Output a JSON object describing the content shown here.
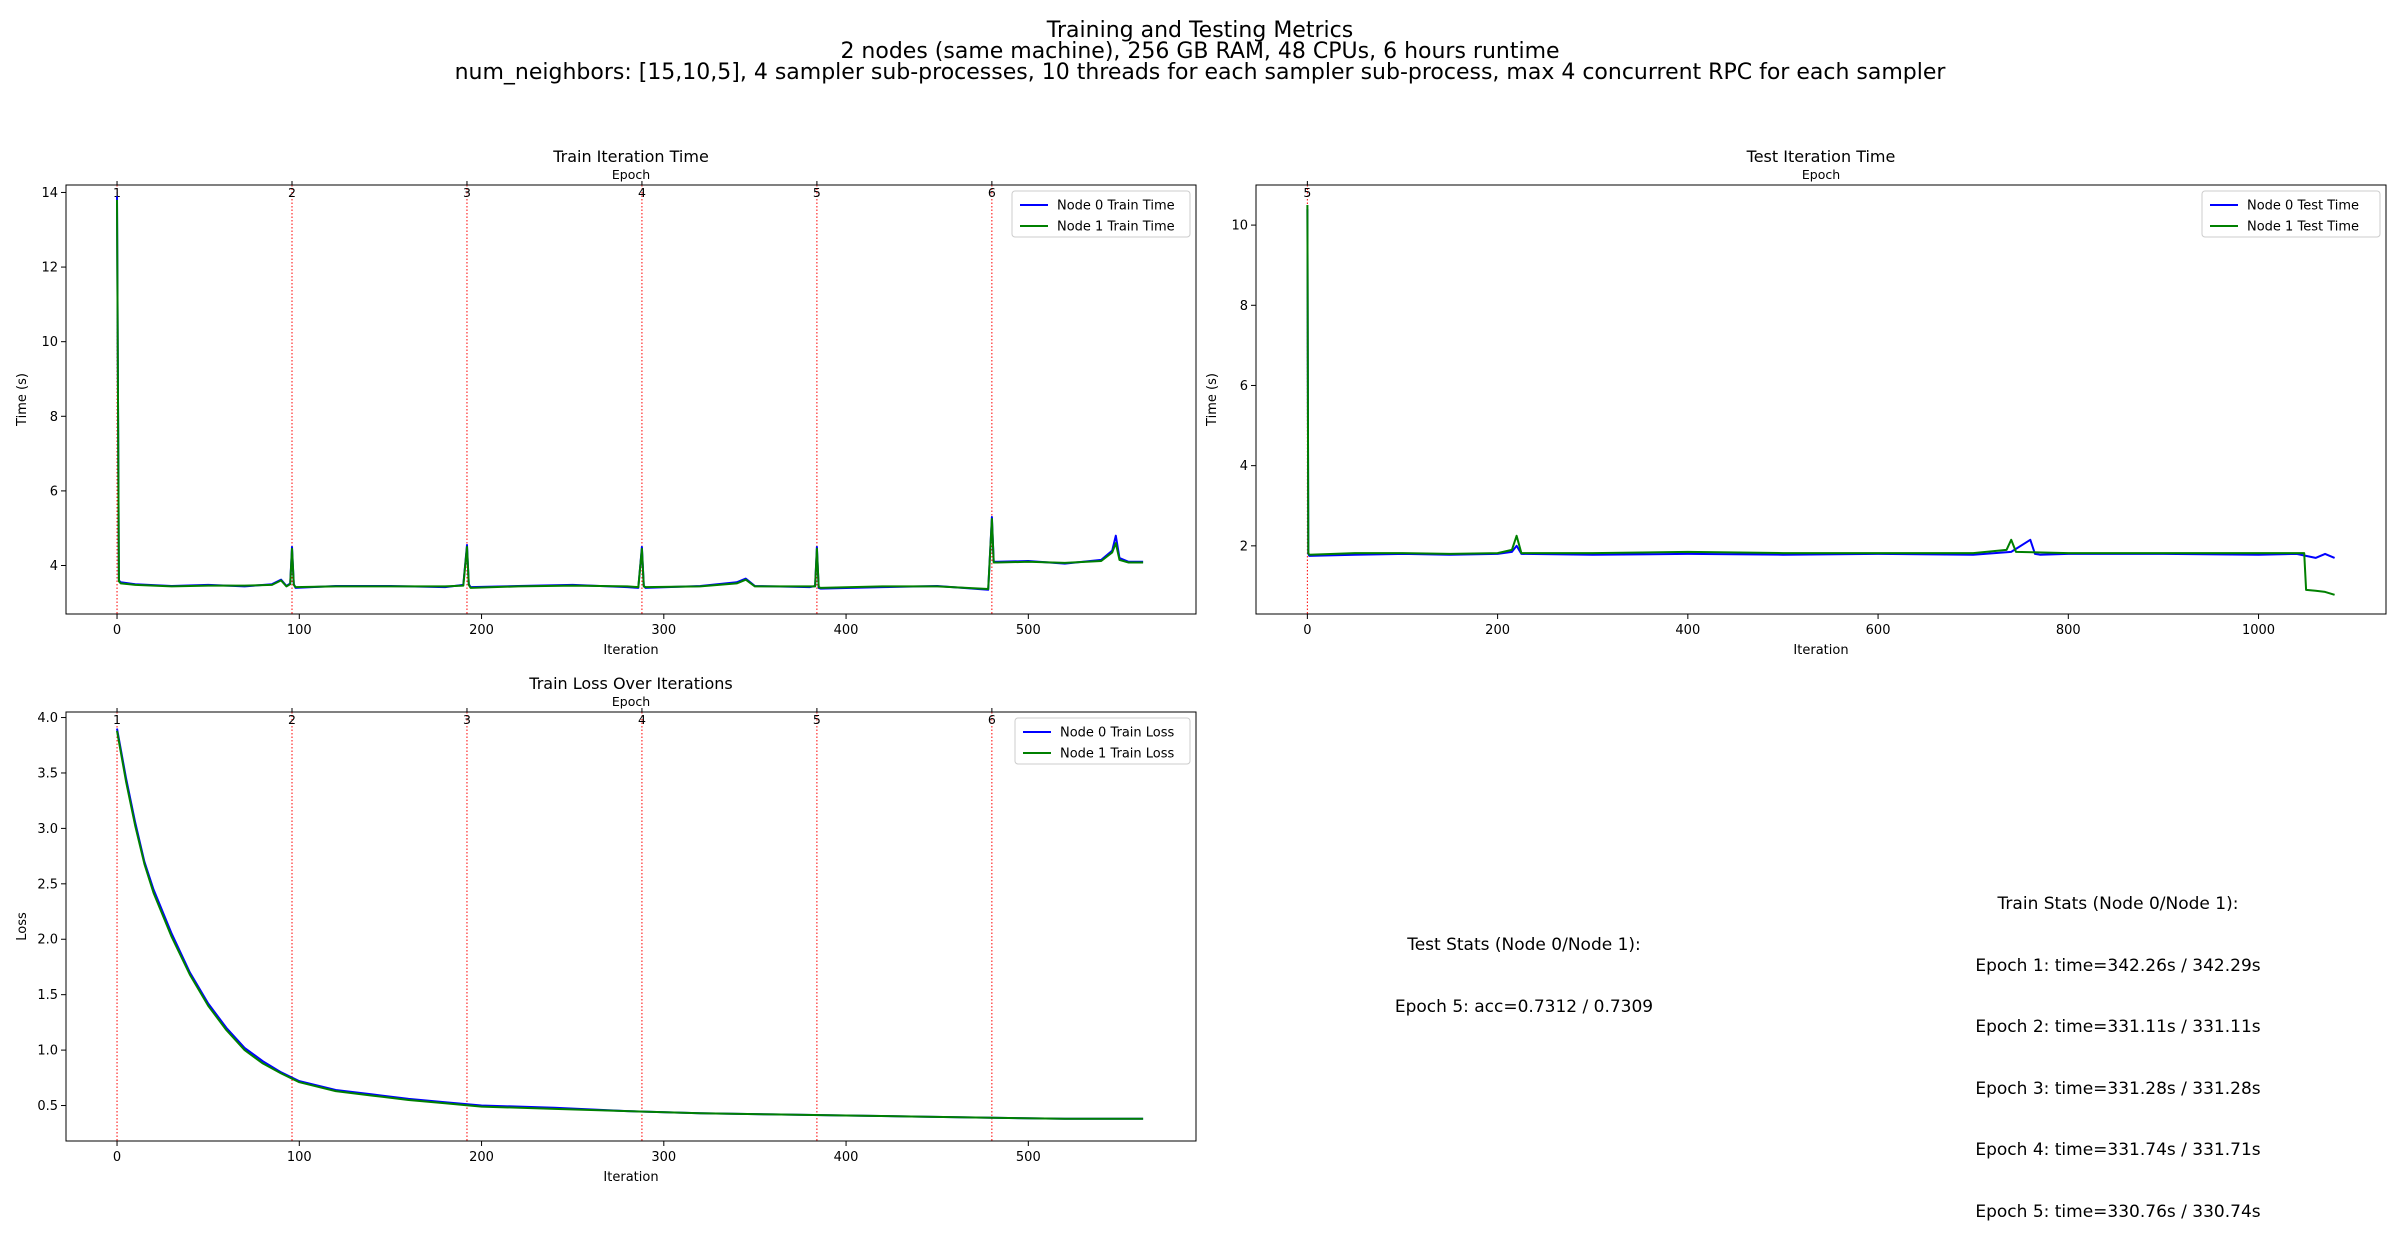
{
  "suptitle": {
    "line1": "Training and Testing Metrics",
    "line2": "2 nodes (same machine), 256 GB RAM, 48 CPUs, 6 hours runtime",
    "line3": "num_neighbors: [15,10,5], 4 sampler sub-processes, 10 threads for each sampler sub-process, max 4 concurrent RPC for each sampler"
  },
  "chart_data": [
    {
      "type": "line",
      "title": "Train Iteration Time",
      "top_axis_label": "Epoch",
      "xlabel": "Iteration",
      "ylabel": "Time (s)",
      "xlim": [
        -28,
        592
      ],
      "ylim": [
        2.7,
        14.2
      ],
      "xticks": [
        0,
        100,
        200,
        300,
        400,
        500
      ],
      "yticks": [
        4,
        6,
        8,
        10,
        12,
        14
      ],
      "epoch_markers": [
        {
          "label": "1",
          "x": 0
        },
        {
          "label": "2",
          "x": 96
        },
        {
          "label": "3",
          "x": 192
        },
        {
          "label": "4",
          "x": 288
        },
        {
          "label": "5",
          "x": 384
        },
        {
          "label": "6",
          "x": 480
        }
      ],
      "legend_position": "top-right",
      "series": [
        {
          "name": "Node 0 Train Time",
          "color": "#0000ff",
          "x": [
            0,
            1,
            2,
            10,
            30,
            50,
            70,
            85,
            90,
            93,
            95,
            96,
            97,
            98,
            120,
            150,
            180,
            190,
            192,
            193,
            194,
            220,
            250,
            280,
            286,
            288,
            289,
            290,
            320,
            340,
            345,
            350,
            380,
            383,
            384,
            385,
            386,
            420,
            450,
            478,
            480,
            481,
            483,
            500,
            520,
            540,
            546,
            548,
            550,
            555,
            563
          ],
          "y": [
            13.9,
            3.6,
            3.55,
            3.5,
            3.45,
            3.48,
            3.44,
            3.5,
            3.62,
            3.45,
            3.52,
            4.5,
            3.5,
            3.4,
            3.45,
            3.45,
            3.42,
            3.48,
            4.55,
            3.5,
            3.42,
            3.45,
            3.48,
            3.42,
            3.4,
            4.5,
            3.45,
            3.4,
            3.45,
            3.55,
            3.65,
            3.45,
            3.42,
            3.45,
            4.5,
            3.4,
            3.38,
            3.42,
            3.45,
            3.35,
            5.3,
            4.1,
            4.1,
            4.12,
            4.05,
            4.15,
            4.4,
            4.8,
            4.2,
            4.1,
            4.1
          ]
        },
        {
          "name": "Node 1 Train Time",
          "color": "#008000",
          "x": [
            0,
            1,
            2,
            10,
            30,
            50,
            70,
            85,
            90,
            93,
            95,
            96,
            97,
            98,
            120,
            150,
            180,
            190,
            192,
            193,
            194,
            220,
            250,
            280,
            286,
            288,
            289,
            290,
            320,
            340,
            345,
            350,
            380,
            383,
            384,
            385,
            386,
            420,
            450,
            478,
            480,
            481,
            483,
            500,
            520,
            540,
            546,
            548,
            550,
            555,
            563
          ],
          "y": [
            13.8,
            3.58,
            3.52,
            3.48,
            3.44,
            3.46,
            3.46,
            3.48,
            3.6,
            3.44,
            3.5,
            4.45,
            3.48,
            3.42,
            3.44,
            3.44,
            3.44,
            3.46,
            4.5,
            3.48,
            3.4,
            3.44,
            3.46,
            3.44,
            3.42,
            4.45,
            3.44,
            3.42,
            3.44,
            3.52,
            3.62,
            3.44,
            3.44,
            3.44,
            4.45,
            3.42,
            3.4,
            3.44,
            3.44,
            3.37,
            5.25,
            4.08,
            4.08,
            4.1,
            4.07,
            4.12,
            4.35,
            4.6,
            4.15,
            4.08,
            4.08
          ]
        }
      ]
    },
    {
      "type": "line",
      "title": "Test Iteration Time",
      "top_axis_label": "Epoch",
      "xlabel": "Iteration",
      "ylabel": "Time (s)",
      "xlim": [
        -54,
        1134
      ],
      "ylim": [
        0.3,
        11.0
      ],
      "xticks": [
        0,
        200,
        400,
        600,
        800,
        1000
      ],
      "yticks": [
        2,
        4,
        6,
        8,
        10
      ],
      "epoch_markers": [
        {
          "label": "5",
          "x": 0
        }
      ],
      "legend_position": "top-right",
      "series": [
        {
          "name": "Node 0 Test Time",
          "color": "#0000ff",
          "x": [
            0,
            1,
            2,
            50,
            100,
            150,
            200,
            215,
            220,
            225,
            300,
            400,
            500,
            600,
            700,
            740,
            760,
            765,
            770,
            800,
            900,
            1000,
            1040,
            1050,
            1060,
            1070,
            1080
          ],
          "y": [
            10.4,
            1.8,
            1.75,
            1.78,
            1.8,
            1.78,
            1.8,
            1.85,
            2.0,
            1.8,
            1.78,
            1.8,
            1.78,
            1.8,
            1.78,
            1.85,
            2.15,
            1.8,
            1.78,
            1.8,
            1.8,
            1.78,
            1.8,
            1.75,
            1.7,
            1.8,
            1.7
          ]
        },
        {
          "name": "Node 1 Test Time",
          "color": "#008000",
          "x": [
            0,
            1,
            2,
            50,
            100,
            150,
            200,
            215,
            220,
            225,
            300,
            400,
            500,
            600,
            700,
            735,
            740,
            745,
            800,
            900,
            1000,
            1040,
            1048,
            1050,
            1060,
            1070,
            1080
          ],
          "y": [
            10.5,
            1.82,
            1.78,
            1.82,
            1.82,
            1.8,
            1.82,
            1.9,
            2.25,
            1.82,
            1.82,
            1.85,
            1.82,
            1.82,
            1.82,
            1.9,
            2.15,
            1.85,
            1.82,
            1.82,
            1.82,
            1.82,
            1.82,
            0.9,
            0.88,
            0.85,
            0.78
          ]
        }
      ]
    },
    {
      "type": "line",
      "title": "Train Loss Over Iterations",
      "top_axis_label": "Epoch",
      "xlabel": "Iteration",
      "ylabel": "Loss",
      "xlim": [
        -28,
        592
      ],
      "ylim": [
        0.18,
        4.05
      ],
      "xticks": [
        0,
        100,
        200,
        300,
        400,
        500
      ],
      "yticks": [
        0.5,
        1.0,
        1.5,
        2.0,
        2.5,
        3.0,
        3.5,
        4.0
      ],
      "epoch_markers": [
        {
          "label": "1",
          "x": 0
        },
        {
          "label": "2",
          "x": 96
        },
        {
          "label": "3",
          "x": 192
        },
        {
          "label": "4",
          "x": 288
        },
        {
          "label": "5",
          "x": 384
        },
        {
          "label": "6",
          "x": 480
        }
      ],
      "legend_position": "top-right",
      "series": [
        {
          "name": "Node 0 Train Loss",
          "color": "#0000ff",
          "x": [
            0,
            5,
            10,
            15,
            20,
            30,
            40,
            50,
            60,
            70,
            80,
            90,
            100,
            120,
            140,
            160,
            180,
            200,
            240,
            280,
            320,
            360,
            400,
            440,
            480,
            520,
            563
          ],
          "y": [
            3.9,
            3.45,
            3.05,
            2.7,
            2.45,
            2.05,
            1.7,
            1.42,
            1.2,
            1.02,
            0.9,
            0.8,
            0.72,
            0.64,
            0.6,
            0.56,
            0.53,
            0.5,
            0.48,
            0.45,
            0.43,
            0.42,
            0.41,
            0.4,
            0.39,
            0.38,
            0.38
          ]
        },
        {
          "name": "Node 1 Train Loss",
          "color": "#008000",
          "x": [
            0,
            5,
            10,
            15,
            20,
            30,
            40,
            50,
            60,
            70,
            80,
            90,
            100,
            120,
            140,
            160,
            180,
            200,
            240,
            280,
            320,
            360,
            400,
            440,
            480,
            520,
            563
          ],
          "y": [
            3.88,
            3.42,
            3.02,
            2.68,
            2.42,
            2.02,
            1.68,
            1.4,
            1.18,
            1.0,
            0.88,
            0.79,
            0.71,
            0.63,
            0.59,
            0.55,
            0.52,
            0.49,
            0.47,
            0.45,
            0.43,
            0.42,
            0.41,
            0.4,
            0.39,
            0.38,
            0.38
          ]
        }
      ]
    }
  ],
  "stats": {
    "test": {
      "title": "Test Stats (Node 0/Node 1):",
      "lines": [
        "Epoch 5: acc=0.7312 / 0.7309"
      ]
    },
    "train": {
      "title": "Train Stats (Node 0/Node 1):",
      "lines": [
        "Epoch 1: time=342.26s / 342.29s",
        "Epoch 2: time=331.11s / 331.11s",
        "Epoch 3: time=331.28s / 331.28s",
        "Epoch 4: time=331.74s / 331.71s",
        "Epoch 5: time=330.76s / 330.74s"
      ]
    }
  }
}
